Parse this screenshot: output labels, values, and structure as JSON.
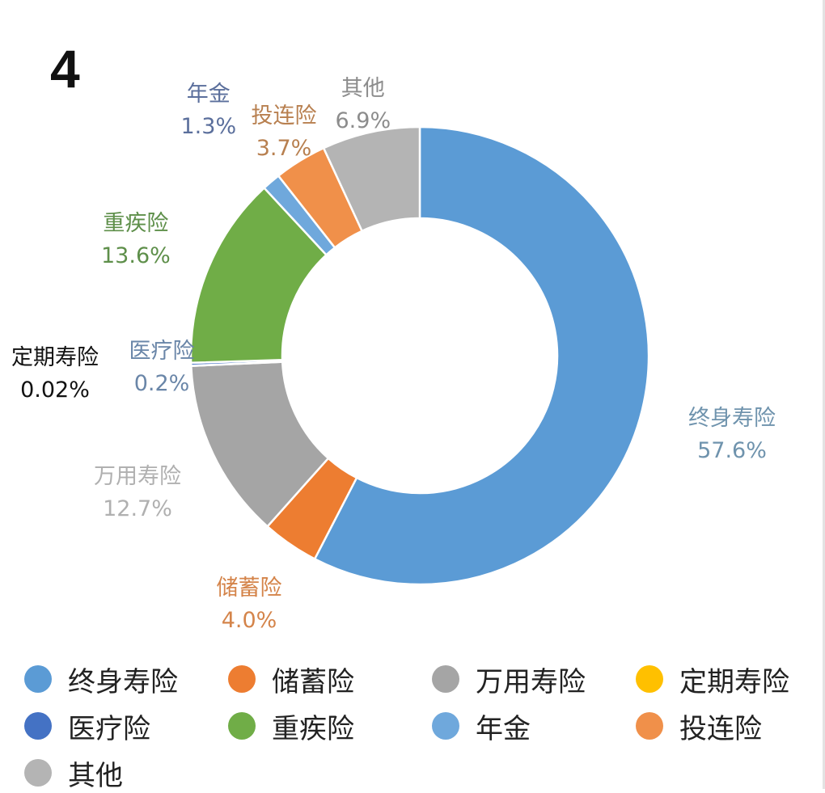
{
  "panel_number": "4",
  "chart_data": {
    "type": "pie",
    "start": "12 o'clock",
    "direction": "clockwise",
    "slices": [
      {
        "name": "终身寿险",
        "value": 57.6,
        "label": "57.6%",
        "color": "#5b9bd5",
        "label_color": "#6f93ad"
      },
      {
        "name": "储蓄险",
        "value": 4.0,
        "label": "4.0%",
        "color": "#ed7d31",
        "label_color": "#d4844a"
      },
      {
        "name": "万用寿险",
        "value": 12.7,
        "label": "12.7%",
        "color": "#a5a5a5",
        "label_color": "#b0b0b0"
      },
      {
        "name": "定期寿险",
        "value": 0.02,
        "label": "0.02%",
        "color": "#ffc000",
        "label_color": "#111111"
      },
      {
        "name": "医疗险",
        "value": 0.2,
        "label": "0.2%",
        "color": "#4472c4",
        "label_color": "#6a86a8"
      },
      {
        "name": "重疾险",
        "value": 13.6,
        "label": "13.6%",
        "color": "#70ad47",
        "label_color": "#5e8f4a"
      },
      {
        "name": "年金",
        "value": 1.3,
        "label": "1.3%",
        "color": "#6fa8dc",
        "label_color": "#5b6f9c"
      },
      {
        "name": "投连险",
        "value": 3.7,
        "label": "3.7%",
        "color": "#f0904a",
        "label_color": "#b88050"
      },
      {
        "name": "其他",
        "value": 6.9,
        "label": "6.9%",
        "color": "#b4b4b4",
        "label_color": "#8c8c8c"
      }
    ],
    "legend": {
      "position": "bottom",
      "items": [
        "终身寿险",
        "储蓄险",
        "万用寿险",
        "定期寿险",
        "医疗险",
        "重疾险",
        "年金",
        "投连险",
        "其他"
      ]
    }
  }
}
